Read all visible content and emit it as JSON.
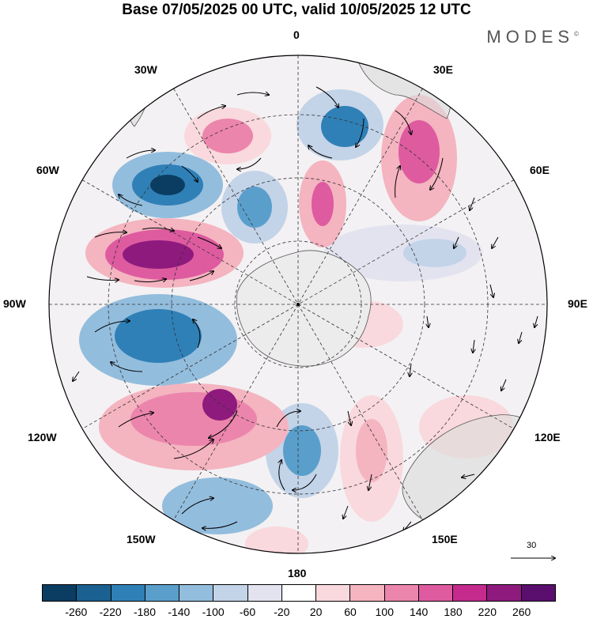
{
  "title": "Base 07/05/2025 00 UTC, valid 10/05/2025 12 UTC",
  "logo": "MODES",
  "logo_mark": "©",
  "longitude_labels": {
    "lon_0": "0",
    "lon_30E": "30E",
    "lon_60E": "60E",
    "lon_90E": "90E",
    "lon_120E": "120E",
    "lon_150E": "150E",
    "lon_180": "180",
    "lon_150W": "150W",
    "lon_120W": "120W",
    "lon_90W": "90W",
    "lon_60W": "60W",
    "lon_30W": "30W"
  },
  "reference_vector_label": "30",
  "colorbar": {
    "colors": [
      "#0b3d62",
      "#1a6191",
      "#2f80b7",
      "#5a9fcc",
      "#93bddd",
      "#c3d3e8",
      "#e3e3f0",
      "#ffffff",
      "#f9d9dd",
      "#f4b4c0",
      "#ec85ac",
      "#de5ba0",
      "#c52a8d",
      "#8f1a7e",
      "#5a0f6e"
    ],
    "ticks": [
      "-260",
      "-220",
      "-180",
      "-140",
      "-100",
      "-60",
      "-20",
      "20",
      "60",
      "100",
      "140",
      "180",
      "220",
      "260"
    ]
  }
}
